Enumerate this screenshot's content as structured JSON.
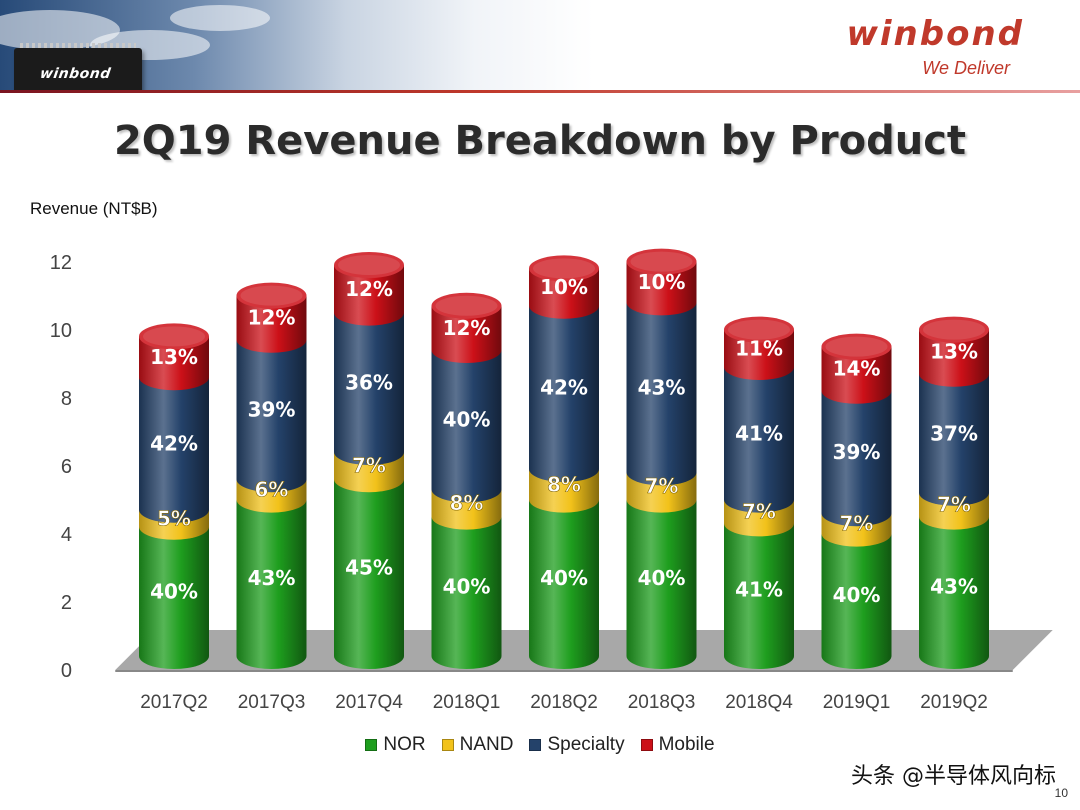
{
  "header": {
    "chip_label": "winbond",
    "brand": "winbond",
    "tagline": "We Deliver"
  },
  "title": "2Q19 Revenue Breakdown by Product",
  "colors": {
    "NOR": "#1e9e1e",
    "NAND": "#f2c21a",
    "Specialty": "#24426a",
    "Mobile": "#cc1018",
    "accent": "#c0392b"
  },
  "chart_data": {
    "type": "bar",
    "stacked": true,
    "title": "2Q19 Revenue Breakdown by Product",
    "ylabel": "Revenue (NT$B)",
    "xlabel": "",
    "ylim": [
      0,
      12
    ],
    "yticks": [
      "0",
      "2",
      "4",
      "6",
      "8",
      "10",
      "12"
    ],
    "categories": [
      "2017Q2",
      "2017Q3",
      "2017Q4",
      "2018Q1",
      "2018Q2",
      "2018Q3",
      "2018Q4",
      "2019Q1",
      "2019Q2"
    ],
    "totals": [
      9.4,
      10.6,
      11.5,
      10.3,
      11.4,
      11.6,
      9.6,
      9.1,
      9.6
    ],
    "series": [
      {
        "name": "NOR",
        "values": [
          3.8,
          4.6,
          5.2,
          4.1,
          4.6,
          4.6,
          3.9,
          3.6,
          4.1
        ],
        "labels": [
          "40%",
          "43%",
          "45%",
          "40%",
          "40%",
          "40%",
          "41%",
          "40%",
          "43%"
        ]
      },
      {
        "name": "NAND",
        "values": [
          0.5,
          0.6,
          0.8,
          0.8,
          0.9,
          0.8,
          0.7,
          0.6,
          0.7
        ],
        "labels": [
          "5%",
          "6%",
          "7%",
          "8%",
          "8%",
          "7%",
          "7%",
          "7%",
          "7%"
        ]
      },
      {
        "name": "Specialty",
        "values": [
          3.9,
          4.1,
          4.1,
          4.1,
          4.8,
          5.0,
          3.9,
          3.6,
          3.5
        ],
        "labels": [
          "42%",
          "39%",
          "36%",
          "40%",
          "42%",
          "43%",
          "41%",
          "39%",
          "37%"
        ]
      },
      {
        "name": "Mobile",
        "values": [
          1.2,
          1.3,
          1.4,
          1.3,
          1.1,
          1.2,
          1.1,
          1.3,
          1.3
        ],
        "labels": [
          "13%",
          "12%",
          "12%",
          "12%",
          "10%",
          "10%",
          "11%",
          "14%",
          "13%"
        ]
      }
    ],
    "legend": [
      "NOR",
      "NAND",
      "Specialty",
      "Mobile"
    ],
    "legend_position": "bottom"
  },
  "watermark": "头条 @半导体风向标",
  "page_number": "10"
}
